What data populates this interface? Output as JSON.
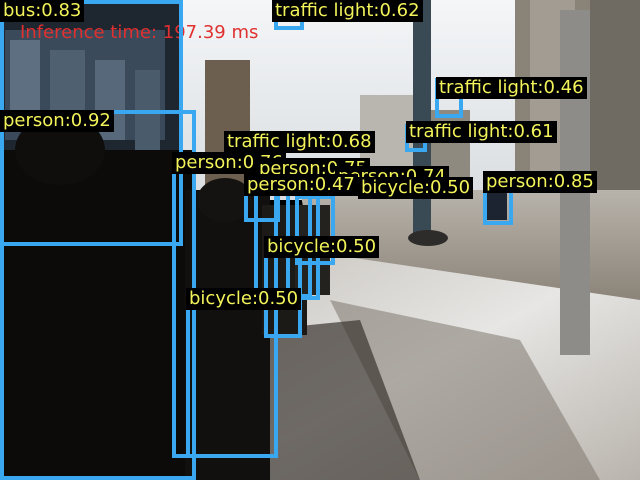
{
  "inference_text": "Inference time: 197.39 ms",
  "colors": {
    "box_border": "#3aa8f0",
    "label_bg": "#000000",
    "label_text": "#f2f25a",
    "inference_text": "#e03030"
  },
  "detections": [
    {
      "label": "bus:0.83",
      "class": "bus",
      "score": 0.83
    },
    {
      "label": "traffic light:0.62",
      "class": "traffic light",
      "score": 0.62
    },
    {
      "label": "person:0.92",
      "class": "person",
      "score": 0.92
    },
    {
      "label": "traffic light:0.46",
      "class": "traffic light",
      "score": 0.46
    },
    {
      "label": "traffic light:0.68",
      "class": "traffic light",
      "score": 0.68
    },
    {
      "label": "traffic light:0.61",
      "class": "traffic light",
      "score": 0.61
    },
    {
      "label": "person:0.76",
      "class": "person",
      "score": 0.76
    },
    {
      "label": "person:0.75",
      "class": "person",
      "score": 0.75
    },
    {
      "label": "person:0.47",
      "class": "person",
      "score": 0.47
    },
    {
      "label": "person:0.74",
      "class": "person",
      "score": 0.74
    },
    {
      "label": "bicycle:0.50",
      "class": "bicycle",
      "score": 0.5
    },
    {
      "label": "person:0.85",
      "class": "person",
      "score": 0.85
    },
    {
      "label": "bicycle:0.50",
      "class": "bicycle",
      "score": 0.5
    },
    {
      "label": "bicycle:0.50",
      "class": "bicycle",
      "score": 0.5
    }
  ]
}
